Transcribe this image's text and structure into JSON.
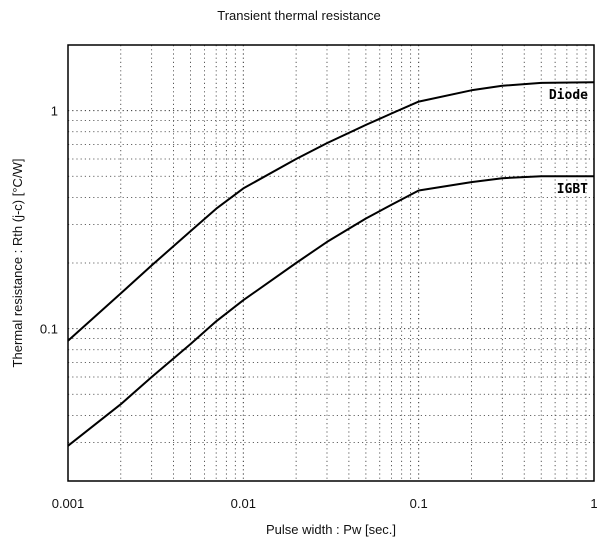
{
  "chart_data": {
    "type": "line",
    "title": "Transient thermal resistance",
    "xlabel": "Pulse width : Pw [sec.]",
    "ylabel": "Thermal resistance : Rth (j-c) [°C/W]",
    "x_scale": "log",
    "y_scale": "log",
    "xlim": [
      0.001,
      1
    ],
    "ylim": [
      0.02,
      2
    ],
    "grid": true,
    "x_ticks": [
      {
        "value": 0.001,
        "label": "0.001"
      },
      {
        "value": 0.01,
        "label": "0.01"
      },
      {
        "value": 0.1,
        "label": "0.1"
      },
      {
        "value": 1,
        "label": "1"
      }
    ],
    "y_ticks": [
      {
        "value": 0.1,
        "label": "0.1"
      },
      {
        "value": 1,
        "label": "1"
      }
    ],
    "series": [
      {
        "name": "Diode",
        "color": "#000000",
        "points": [
          [
            0.001,
            0.088
          ],
          [
            0.002,
            0.145
          ],
          [
            0.003,
            0.195
          ],
          [
            0.005,
            0.28
          ],
          [
            0.007,
            0.355
          ],
          [
            0.01,
            0.44
          ],
          [
            0.02,
            0.6
          ],
          [
            0.03,
            0.71
          ],
          [
            0.05,
            0.86
          ],
          [
            0.07,
            0.97
          ],
          [
            0.1,
            1.1
          ],
          [
            0.2,
            1.24
          ],
          [
            0.3,
            1.3
          ],
          [
            0.5,
            1.34
          ],
          [
            1,
            1.35
          ]
        ]
      },
      {
        "name": "IGBT",
        "color": "#000000",
        "points": [
          [
            0.001,
            0.029
          ],
          [
            0.002,
            0.045
          ],
          [
            0.003,
            0.06
          ],
          [
            0.005,
            0.085
          ],
          [
            0.007,
            0.108
          ],
          [
            0.01,
            0.135
          ],
          [
            0.02,
            0.2
          ],
          [
            0.03,
            0.25
          ],
          [
            0.05,
            0.32
          ],
          [
            0.07,
            0.37
          ],
          [
            0.1,
            0.43
          ],
          [
            0.2,
            0.47
          ],
          [
            0.3,
            0.49
          ],
          [
            0.5,
            0.5
          ],
          [
            1,
            0.5
          ]
        ]
      }
    ]
  }
}
